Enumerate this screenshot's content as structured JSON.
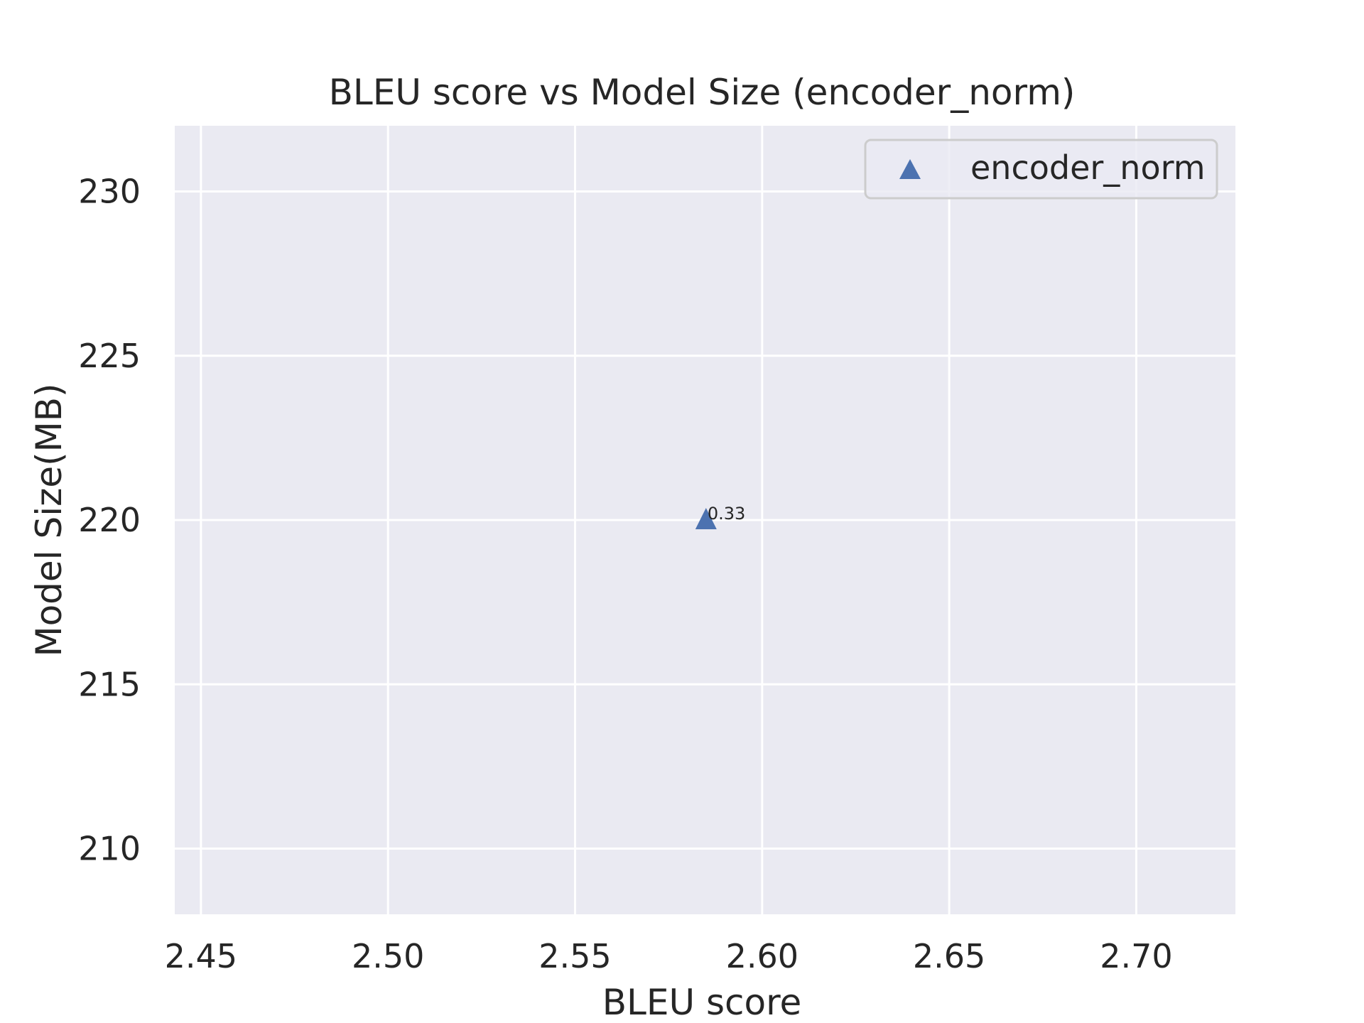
{
  "chart_data": {
    "type": "scatter",
    "title": "BLEU score vs Model Size (encoder_norm)",
    "xlabel": "BLEU score",
    "ylabel": "Model Size(MB)",
    "xlim": [
      2.443,
      2.7265
    ],
    "ylim": [
      208.0,
      232.0
    ],
    "x_ticks": [
      2.45,
      2.5,
      2.55,
      2.6,
      2.65,
      2.7
    ],
    "x_tick_labels": [
      "2.45",
      "2.50",
      "2.55",
      "2.60",
      "2.65",
      "2.70"
    ],
    "y_ticks": [
      210,
      215,
      220,
      225,
      230
    ],
    "y_tick_labels": [
      "210",
      "215",
      "220",
      "225",
      "230"
    ],
    "grid": true,
    "legend_position": "top-right",
    "series": [
      {
        "name": "encoder_norm",
        "marker": "triangle-up",
        "color": "#4c72b0",
        "points": [
          {
            "x": 2.585,
            "y": 220.0,
            "label": "0.33"
          }
        ]
      }
    ],
    "colors": {
      "plot_bg": "#eaeaf2",
      "grid": "#ffffff",
      "text": "#262626"
    }
  }
}
